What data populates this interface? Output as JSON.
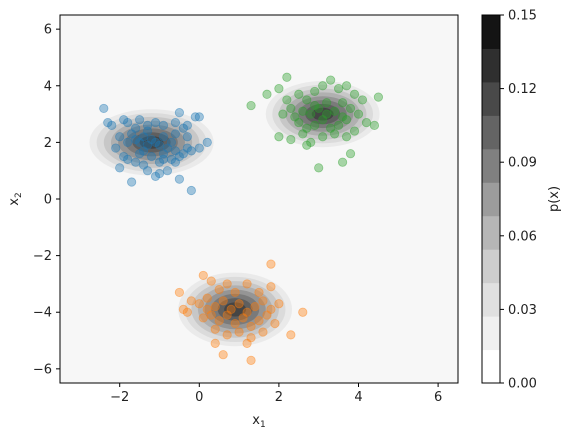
{
  "chart_data": {
    "type": "scatter",
    "title": "",
    "xlabel": "x",
    "xlabel_sub": "1",
    "ylabel": "x",
    "ylabel_sub": "2",
    "xlim": [
      -3.5,
      6.5
    ],
    "ylim": [
      -6.5,
      6.5
    ],
    "x_ticks": [
      -2,
      0,
      2,
      4,
      6
    ],
    "y_ticks": [
      -6,
      -4,
      -2,
      0,
      2,
      4,
      6
    ],
    "x_tick_labels": [
      "−2",
      "0",
      "2",
      "4",
      "6"
    ],
    "y_tick_labels": [
      "−6",
      "−4",
      "−2",
      "0",
      "2",
      "4",
      "6"
    ],
    "background_color": "#f7f7f7",
    "density_components": [
      {
        "mean": [
          -1.2,
          2.0
        ],
        "sd": [
          0.6,
          0.45
        ]
      },
      {
        "mean": [
          3.1,
          3.0
        ],
        "sd": [
          0.55,
          0.45
        ]
      },
      {
        "mean": [
          0.9,
          -3.9
        ],
        "sd": [
          0.55,
          0.5
        ]
      }
    ],
    "series": [
      {
        "color": "#1f77b4",
        "points": [
          [
            -2.4,
            3.2
          ],
          [
            -2.3,
            2.7
          ],
          [
            -2.2,
            2.6
          ],
          [
            -1.9,
            2.8
          ],
          [
            -1.8,
            2.7
          ],
          [
            -1.6,
            2.5
          ],
          [
            -1.5,
            2.8
          ],
          [
            -1.3,
            2.6
          ],
          [
            -1.1,
            2.7
          ],
          [
            -0.9,
            2.6
          ],
          [
            -0.6,
            2.7
          ],
          [
            -0.5,
            3.05
          ],
          [
            -0.4,
            2.5
          ],
          [
            -0.3,
            2.6
          ],
          [
            -0.1,
            2.9
          ],
          [
            0.0,
            2.9
          ],
          [
            -2.0,
            2.2
          ],
          [
            -1.8,
            2.0
          ],
          [
            -1.7,
            2.3
          ],
          [
            -1.6,
            2.1
          ],
          [
            -1.5,
            2.0
          ],
          [
            -1.4,
            2.2
          ],
          [
            -1.3,
            1.9
          ],
          [
            -1.2,
            2.1
          ],
          [
            -1.1,
            2.0
          ],
          [
            -1.0,
            1.9
          ],
          [
            -0.9,
            2.2
          ],
          [
            -0.8,
            1.8
          ],
          [
            -0.7,
            2.0
          ],
          [
            -0.6,
            1.7
          ],
          [
            -0.5,
            1.5
          ],
          [
            -0.4,
            1.6
          ],
          [
            -0.3,
            1.8
          ],
          [
            -0.2,
            1.7
          ],
          [
            0.0,
            1.8
          ],
          [
            0.2,
            2.0
          ],
          [
            -1.9,
            1.5
          ],
          [
            -1.8,
            1.4
          ],
          [
            -1.6,
            1.3
          ],
          [
            -1.4,
            1.2
          ],
          [
            -1.3,
            1.0
          ],
          [
            -1.1,
            0.8
          ],
          [
            -1.2,
            1.5
          ],
          [
            -1.0,
            1.3
          ],
          [
            -0.8,
            1.0
          ],
          [
            -0.6,
            1.3
          ],
          [
            -0.5,
            0.7
          ],
          [
            -2.0,
            1.1
          ],
          [
            -1.7,
            0.6
          ],
          [
            -1.0,
            0.9
          ],
          [
            -0.9,
            1.4
          ],
          [
            -0.2,
            0.3
          ],
          [
            -2.1,
            1.8
          ],
          [
            -1.4,
            1.7
          ],
          [
            -0.7,
            1.4
          ],
          [
            -0.3,
            2.2
          ],
          [
            -1.5,
            1.6
          ],
          [
            -0.9,
            1.6
          ],
          [
            -1.3,
            2.4
          ],
          [
            -0.6,
            2.3
          ]
        ]
      },
      {
        "color": "#2ca02c",
        "points": [
          [
            1.3,
            3.3
          ],
          [
            1.7,
            3.7
          ],
          [
            2.0,
            3.9
          ],
          [
            2.2,
            4.3
          ],
          [
            2.5,
            3.7
          ],
          [
            2.7,
            3.5
          ],
          [
            2.9,
            3.8
          ],
          [
            3.1,
            4.0
          ],
          [
            3.3,
            4.2
          ],
          [
            3.5,
            3.9
          ],
          [
            3.7,
            4.0
          ],
          [
            3.9,
            3.7
          ],
          [
            4.1,
            3.5
          ],
          [
            4.5,
            3.6
          ],
          [
            2.1,
            3.0
          ],
          [
            2.3,
            3.2
          ],
          [
            2.4,
            2.9
          ],
          [
            2.6,
            3.1
          ],
          [
            2.8,
            3.0
          ],
          [
            3.0,
            3.2
          ],
          [
            3.2,
            3.0
          ],
          [
            3.4,
            3.1
          ],
          [
            3.6,
            2.9
          ],
          [
            3.8,
            3.2
          ],
          [
            4.0,
            3.0
          ],
          [
            2.5,
            2.7
          ],
          [
            2.7,
            2.5
          ],
          [
            2.9,
            2.6
          ],
          [
            3.1,
            2.8
          ],
          [
            3.3,
            2.5
          ],
          [
            3.5,
            2.6
          ],
          [
            3.7,
            2.8
          ],
          [
            3.9,
            2.4
          ],
          [
            4.2,
            2.7
          ],
          [
            4.4,
            2.6
          ],
          [
            2.0,
            2.2
          ],
          [
            2.3,
            2.1
          ],
          [
            2.6,
            2.3
          ],
          [
            2.8,
            2.0
          ],
          [
            3.1,
            2.2
          ],
          [
            3.4,
            2.3
          ],
          [
            3.7,
            2.2
          ],
          [
            2.7,
            1.9
          ],
          [
            3.0,
            1.1
          ],
          [
            3.6,
            1.3
          ],
          [
            3.8,
            1.6
          ],
          [
            2.2,
            3.5
          ],
          [
            3.2,
            3.4
          ],
          [
            3.6,
            3.4
          ],
          [
            2.9,
            3.3
          ]
        ]
      },
      {
        "color": "#ff7f0e",
        "points": [
          [
            0.1,
            -2.7
          ],
          [
            0.3,
            -2.9
          ],
          [
            0.7,
            -3.0
          ],
          [
            1.2,
            -3.0
          ],
          [
            1.5,
            -3.3
          ],
          [
            1.8,
            -3.1
          ],
          [
            1.8,
            -2.3
          ],
          [
            -0.5,
            -3.3
          ],
          [
            -0.4,
            -3.9
          ],
          [
            -0.2,
            -3.6
          ],
          [
            0.0,
            -3.7
          ],
          [
            0.2,
            -3.5
          ],
          [
            0.4,
            -3.8
          ],
          [
            0.6,
            -3.6
          ],
          [
            0.8,
            -3.9
          ],
          [
            1.0,
            -3.7
          ],
          [
            1.2,
            -4.0
          ],
          [
            1.4,
            -3.8
          ],
          [
            1.6,
            -3.6
          ],
          [
            1.8,
            -3.9
          ],
          [
            2.0,
            -3.7
          ],
          [
            -0.3,
            -4.0
          ],
          [
            0.1,
            -4.2
          ],
          [
            0.3,
            -4.1
          ],
          [
            0.5,
            -4.3
          ],
          [
            0.7,
            -4.1
          ],
          [
            0.9,
            -4.4
          ],
          [
            1.1,
            -4.2
          ],
          [
            1.3,
            -4.5
          ],
          [
            1.5,
            -4.3
          ],
          [
            1.7,
            -4.1
          ],
          [
            1.9,
            -4.4
          ],
          [
            0.4,
            -4.6
          ],
          [
            0.7,
            -4.8
          ],
          [
            1.0,
            -4.7
          ],
          [
            1.3,
            -4.9
          ],
          [
            0.4,
            -5.1
          ],
          [
            0.6,
            -5.5
          ],
          [
            1.2,
            -5.1
          ],
          [
            1.3,
            -5.7
          ],
          [
            2.3,
            -4.8
          ],
          [
            2.6,
            -4.0
          ],
          [
            0.9,
            -3.3
          ],
          [
            0.5,
            -3.2
          ],
          [
            1.6,
            -4.7
          ],
          [
            0.2,
            -3.9
          ]
        ]
      }
    ],
    "colorbar": {
      "label": "p(x)",
      "min": 0.0,
      "max": 0.15,
      "levels": 10,
      "ticks": [
        0.0,
        0.03,
        0.06,
        0.09,
        0.12,
        0.15
      ],
      "tick_labels": [
        "0.00",
        "0.03",
        "0.06",
        "0.09",
        "0.12",
        "0.15"
      ],
      "colors": [
        "#ffffff",
        "#f0f0f0",
        "#e0e0e0",
        "#cdcdcd",
        "#b6b6b6",
        "#9c9c9c",
        "#808080",
        "#646464",
        "#494949",
        "#2f2f2f",
        "#141414"
      ]
    }
  }
}
